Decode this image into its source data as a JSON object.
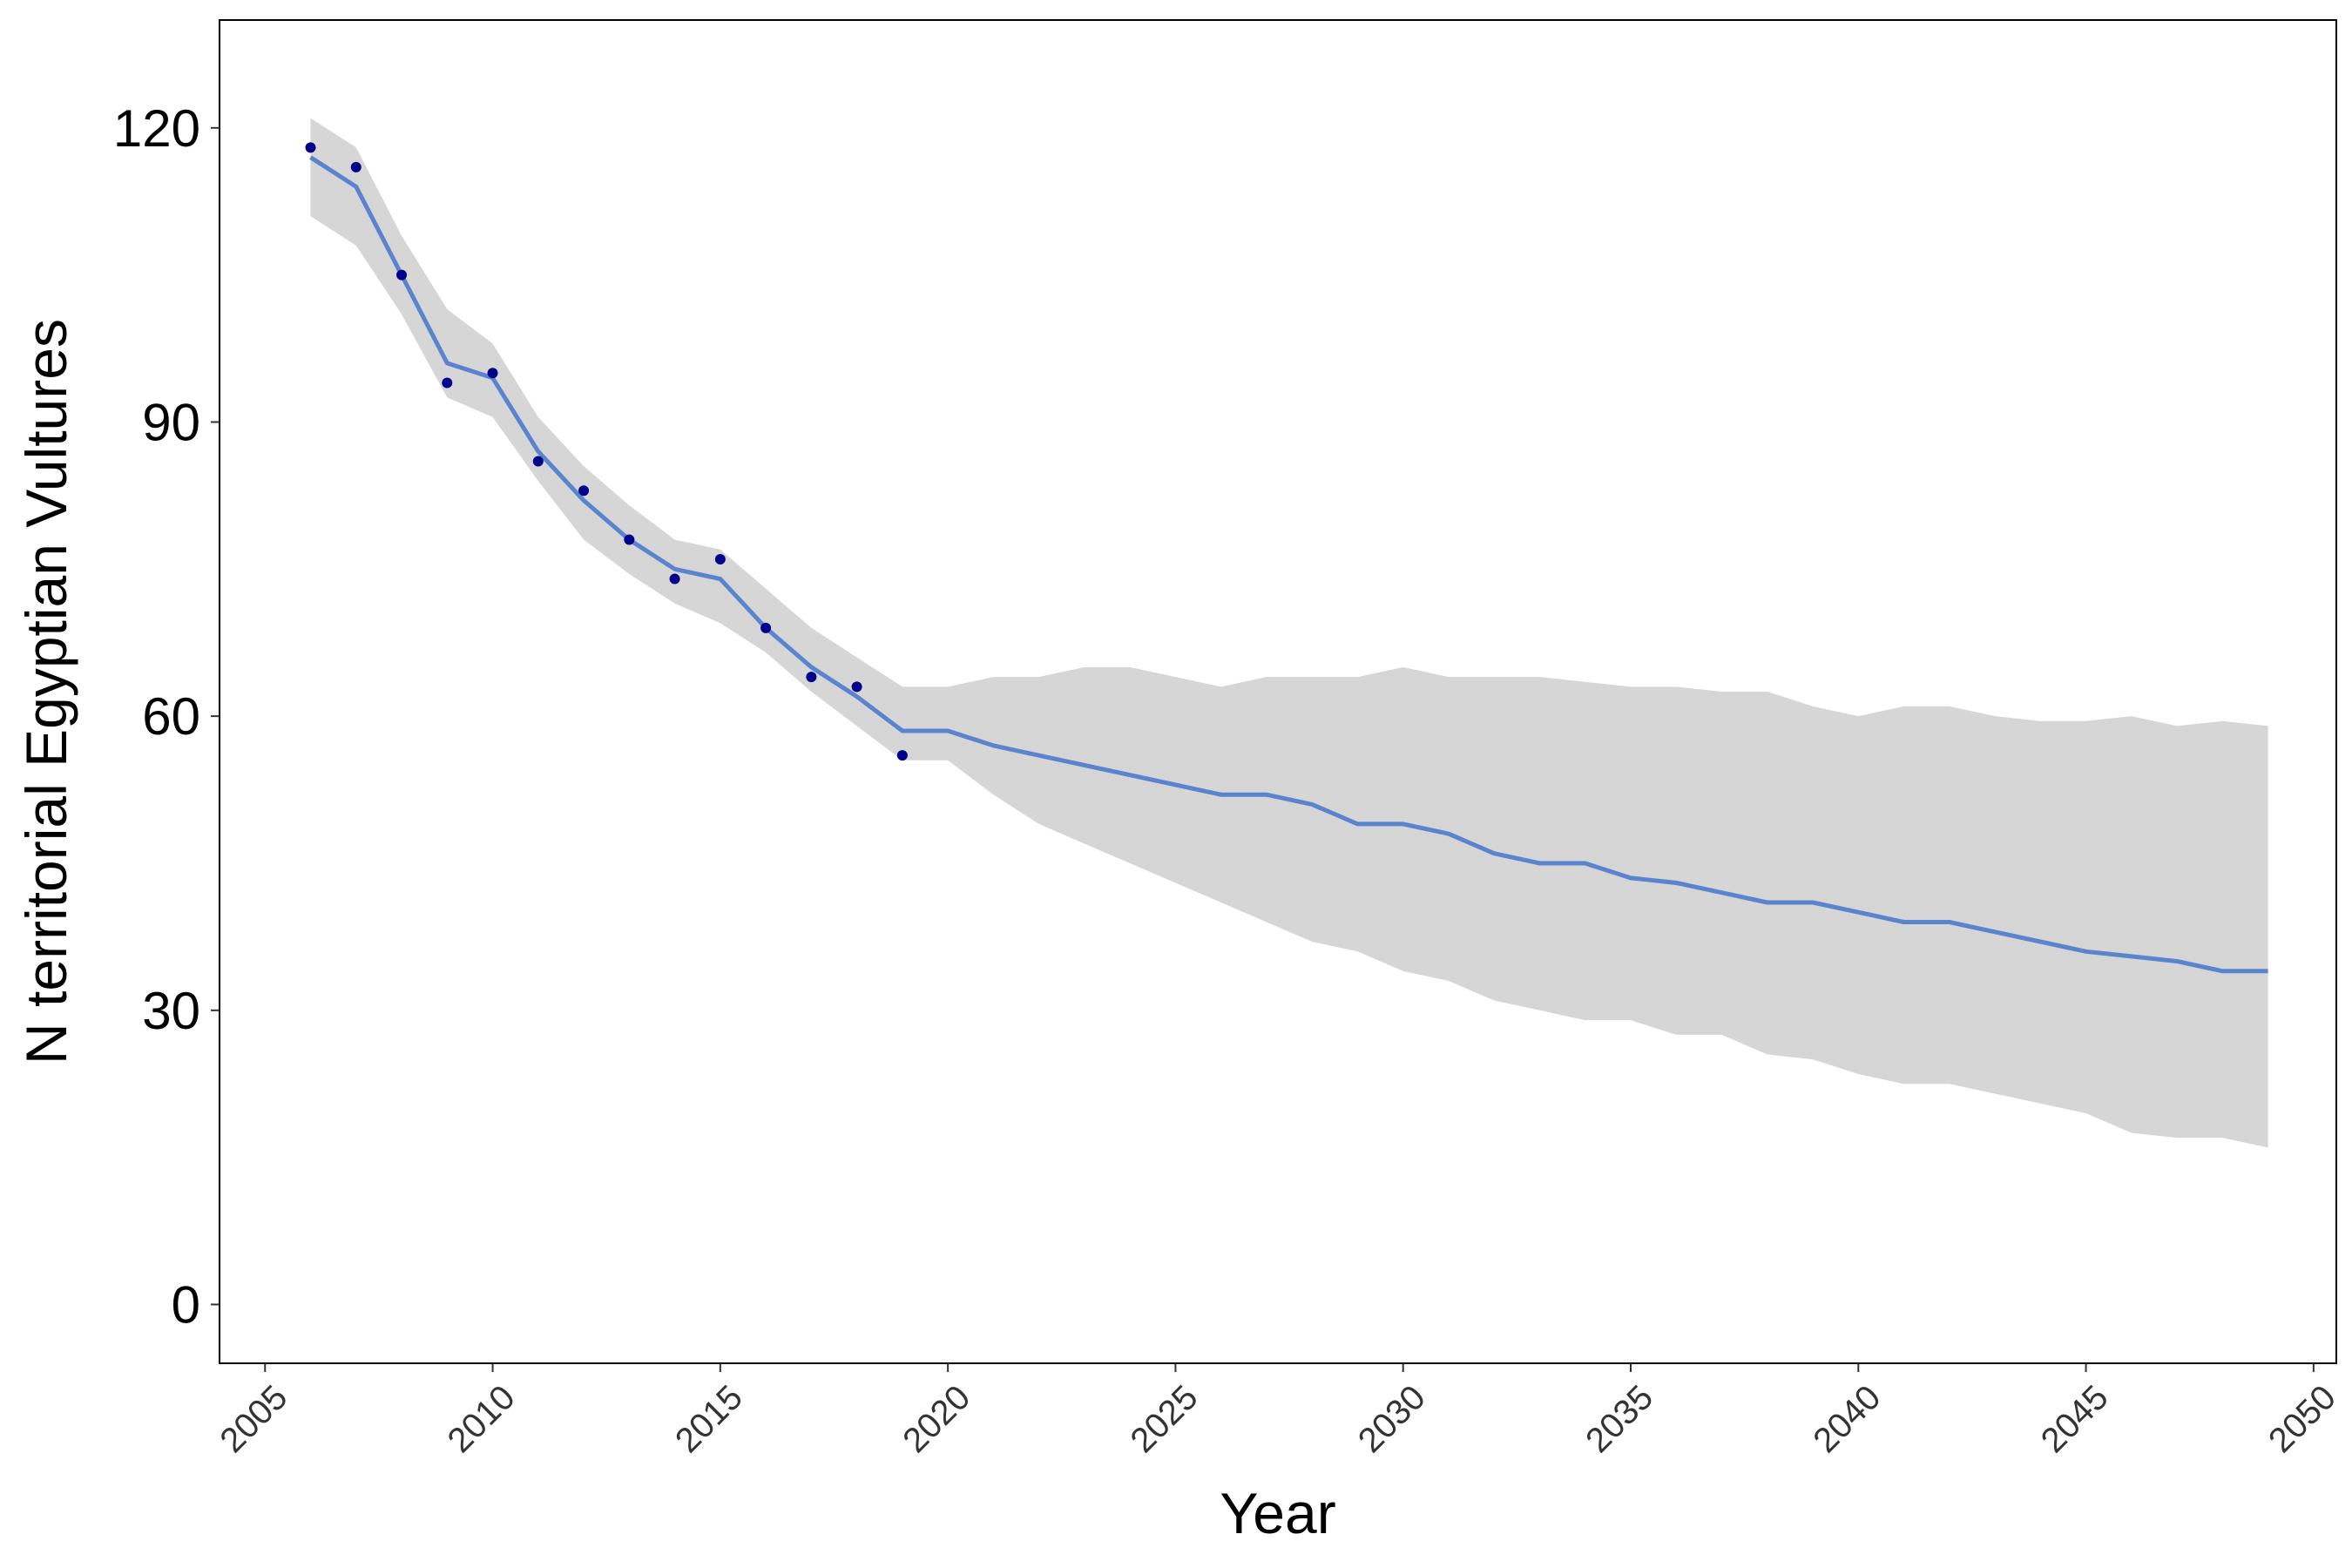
{
  "chart_data": {
    "type": "line",
    "xlabel": "Year",
    "ylabel": "N territorial Egyptian Vultures",
    "xlim": [
      2004,
      2050.5
    ],
    "ylim": [
      -6,
      131
    ],
    "x_ticks": [
      2005,
      2010,
      2015,
      2020,
      2025,
      2030,
      2035,
      2040,
      2045,
      2050
    ],
    "y_ticks": [
      0,
      30,
      60,
      90,
      120
    ],
    "grid": false,
    "colors": {
      "line": "#5B84CF",
      "band": "#D6D6D6",
      "points": "#00008B"
    },
    "observed": {
      "x": [
        2006,
        2007,
        2008,
        2009,
        2010,
        2011,
        2012,
        2013,
        2014,
        2015,
        2016,
        2017,
        2018,
        2019
      ],
      "y": [
        118,
        116,
        105,
        94,
        95,
        86,
        83,
        78,
        74,
        76,
        69,
        64,
        63,
        56
      ]
    },
    "estimate": {
      "x": [
        2006,
        2007,
        2008,
        2009,
        2010,
        2011,
        2012,
        2013,
        2014,
        2015,
        2016,
        2017,
        2018,
        2019,
        2020,
        2021,
        2022,
        2023,
        2024,
        2025,
        2026,
        2027,
        2028,
        2029,
        2030,
        2031,
        2032,
        2033,
        2034,
        2035,
        2036,
        2037,
        2038,
        2039,
        2040,
        2041,
        2042,
        2043,
        2044,
        2045,
        2046,
        2047,
        2048,
        2049
      ],
      "y": [
        117,
        114,
        105,
        96,
        94.5,
        87,
        82,
        78,
        75,
        74,
        69,
        65,
        62,
        58.5,
        58.5,
        57,
        56,
        55,
        54,
        53,
        52,
        52,
        51,
        49,
        49,
        48,
        46,
        45,
        45,
        43.5,
        43,
        42,
        41,
        41,
        40,
        39,
        39,
        38,
        37,
        36,
        35.5,
        35,
        34,
        34
      ],
      "lower": [
        111,
        108,
        101,
        92.5,
        90.5,
        84,
        78,
        74.5,
        71.5,
        69.5,
        66.5,
        62.5,
        59,
        55.5,
        55.5,
        52,
        49,
        47,
        45,
        43,
        41,
        39,
        37,
        36,
        34,
        33,
        31,
        30,
        29,
        29,
        27.5,
        27.5,
        25.5,
        25,
        23.5,
        22.5,
        22.5,
        21.5,
        20.5,
        19.5,
        17.5,
        17,
        17,
        16
      ],
      "upper": [
        121,
        118,
        109,
        101.5,
        98,
        90.5,
        85.5,
        81.5,
        78,
        77,
        73,
        69,
        66,
        63,
        63,
        64,
        64,
        65,
        65,
        64,
        63,
        64,
        64,
        64,
        65,
        64,
        64,
        64,
        63.5,
        63,
        63,
        62.5,
        62.5,
        61,
        60,
        61,
        61,
        60,
        59.5,
        59.5,
        60,
        59,
        59.5,
        59
      ]
    }
  }
}
